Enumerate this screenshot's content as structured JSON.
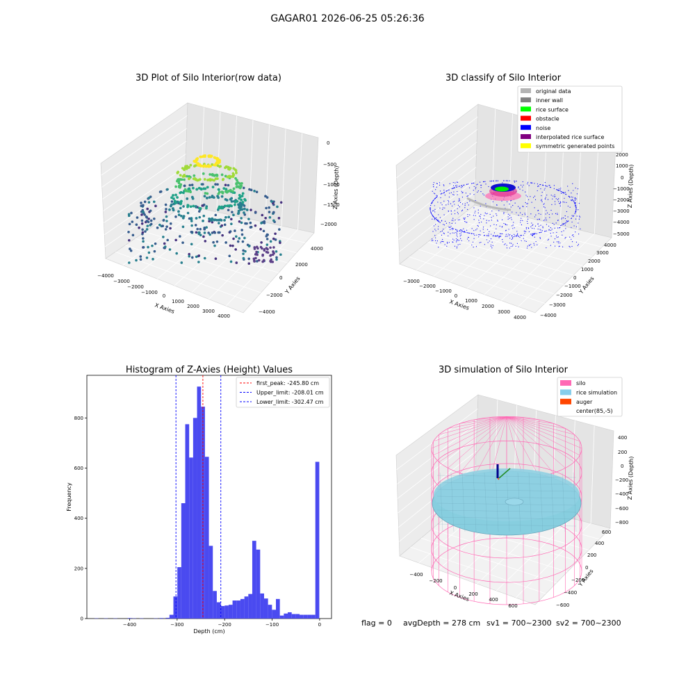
{
  "suptitle": "GAGAR01 2026-06-25 05:26:36",
  "status_line": {
    "flag": "flag = 0",
    "avg_depth": "avgDepth = 278 cm",
    "sv1": "sv1 = 700~2300",
    "sv2": "sv2 = 700~2300"
  },
  "colors": {
    "hist_bar": "#4a4af0",
    "first_peak": "#ff0000",
    "limits": "#0000ff",
    "silo_wire": "#ff69b4",
    "rice_surface": "#87cedf",
    "noise": "#0000ff"
  },
  "chart_data": [
    {
      "type": "scatter",
      "title": "3D Plot of Silo Interior(row data)",
      "xlabel": "X Axies",
      "ylabel": "Y Axies",
      "zlabel": "Z Axies (Depth)",
      "xticks": [
        "−4000",
        "−3000",
        "−2000",
        "−1000",
        "0",
        "1000",
        "2000",
        "3000",
        "4000"
      ],
      "yticks": [
        "−4000",
        "−2000",
        "0",
        "2000",
        "4000"
      ],
      "zticks": [
        "0",
        "−500",
        "−1000",
        "−1500",
        "−2000"
      ],
      "xlim": [
        -4000,
        4000
      ],
      "ylim": [
        -4000,
        4000
      ],
      "zlim": [
        -2000,
        0
      ],
      "colormap": "viridis"
    },
    {
      "type": "scatter",
      "title": "3D classify of Silo Interior",
      "xlabel": "X Axies",
      "ylabel": "Y Axies",
      "zlabel": "Z Axies (Depth)",
      "xticks": [
        "−3000",
        "−2000",
        "−1000",
        "0",
        "1000",
        "2000",
        "3000",
        "4000"
      ],
      "yticks": [
        "−4000",
        "−3000",
        "−2000",
        "−1000",
        "0",
        "1000",
        "2000",
        "3000",
        "4000"
      ],
      "zticks": [
        "2000",
        "1000",
        "0",
        "−1000",
        "−2000",
        "−3000",
        "−4000",
        "−5000"
      ],
      "legend_position": "top-right",
      "legend": [
        {
          "label": "original data",
          "color": "#b4b4b4"
        },
        {
          "label": "inner wall",
          "color": "#808080"
        },
        {
          "label": "rice surface",
          "color": "#00ff00"
        },
        {
          "label": "obstacle",
          "color": "#ff0000"
        },
        {
          "label": "noise",
          "color": "#0000ff"
        },
        {
          "label": "interpolated rice surface",
          "color": "#800080"
        },
        {
          "label": "symmetric generated points",
          "color": "#ffff00"
        }
      ]
    },
    {
      "type": "bar",
      "title": "Histogram of Z-Axies (Height) Values",
      "xlabel": "Depth (cm)",
      "ylabel": "Frequency",
      "xlim": [
        -490,
        25
      ],
      "ylim": [
        0,
        970
      ],
      "xticks": [
        -400,
        -300,
        -200,
        -100,
        0
      ],
      "yticks": [
        0,
        200,
        400,
        600,
        800
      ],
      "bin_width": 8.3,
      "bins": [
        {
          "x": -470,
          "count": 1
        },
        {
          "x": -450,
          "count": 1
        },
        {
          "x": -430,
          "count": 1
        },
        {
          "x": -400,
          "count": 2
        },
        {
          "x": -390,
          "count": 1
        },
        {
          "x": -375,
          "count": 1
        },
        {
          "x": -345,
          "count": 1
        },
        {
          "x": -333,
          "count": 2
        },
        {
          "x": -320,
          "count": 3
        },
        {
          "x": -312,
          "count": 15
        },
        {
          "x": -303.7,
          "count": 88
        },
        {
          "x": -295.4,
          "count": 205
        },
        {
          "x": -287.1,
          "count": 460
        },
        {
          "x": -278.8,
          "count": 775
        },
        {
          "x": -270.5,
          "count": 642
        },
        {
          "x": -262.2,
          "count": 800
        },
        {
          "x": -253.9,
          "count": 925
        },
        {
          "x": -245.6,
          "count": 845
        },
        {
          "x": -237.3,
          "count": 645
        },
        {
          "x": -229,
          "count": 290
        },
        {
          "x": -220.7,
          "count": 110
        },
        {
          "x": -212.4,
          "count": 65
        },
        {
          "x": -204.1,
          "count": 50
        },
        {
          "x": -195.8,
          "count": 52
        },
        {
          "x": -187.5,
          "count": 55
        },
        {
          "x": -179.2,
          "count": 72
        },
        {
          "x": -170.9,
          "count": 72
        },
        {
          "x": -162.6,
          "count": 78
        },
        {
          "x": -154.3,
          "count": 88
        },
        {
          "x": -146,
          "count": 98
        },
        {
          "x": -137.7,
          "count": 310
        },
        {
          "x": -129.4,
          "count": 275
        },
        {
          "x": -121.1,
          "count": 100
        },
        {
          "x": -112.8,
          "count": 80
        },
        {
          "x": -104.5,
          "count": 55
        },
        {
          "x": -96.2,
          "count": 35
        },
        {
          "x": -87.9,
          "count": 78
        },
        {
          "x": -79.6,
          "count": 12
        },
        {
          "x": -71.3,
          "count": 20
        },
        {
          "x": -63,
          "count": 25
        },
        {
          "x": -54.7,
          "count": 18
        },
        {
          "x": -46.4,
          "count": 18
        },
        {
          "x": -38.1,
          "count": 15
        },
        {
          "x": -29.8,
          "count": 15
        },
        {
          "x": -21.5,
          "count": 15
        },
        {
          "x": -13.2,
          "count": 15
        },
        {
          "x": -4.9,
          "count": 625
        }
      ],
      "vlines": [
        {
          "label": "first_peak: -245.80 cm",
          "x": -245.8,
          "color": "#ff0000"
        },
        {
          "label": "Upper_limit: -208.01 cm",
          "x": -208.01,
          "color": "#0000ff"
        },
        {
          "label": "Lower_limit: -302.47 cm",
          "x": -302.47,
          "color": "#0000ff"
        }
      ],
      "legend_position": "top-right"
    },
    {
      "type": "surface",
      "title": "3D simulation of Silo Interior",
      "xlabel": "X Axies",
      "ylabel": "Y Axies",
      "zlabel": "Z Axies (Depth)",
      "xticks": [
        "−400",
        "−200",
        "0",
        "200",
        "400",
        "600"
      ],
      "yticks": [
        "−600",
        "−400",
        "−200",
        "0",
        "200",
        "400",
        "600"
      ],
      "zticks": [
        "400",
        "200",
        "0",
        "−200",
        "−400",
        "−600",
        "−800"
      ],
      "legend_position": "top-right",
      "legend": [
        {
          "label": "silo",
          "color": "#ff69b4"
        },
        {
          "label": "rice simulation",
          "color": "#87ceeb"
        },
        {
          "label": "auger",
          "color": "#ff4500"
        },
        {
          "label": "center(85,-5)",
          "color": "#ffffff"
        }
      ]
    }
  ]
}
